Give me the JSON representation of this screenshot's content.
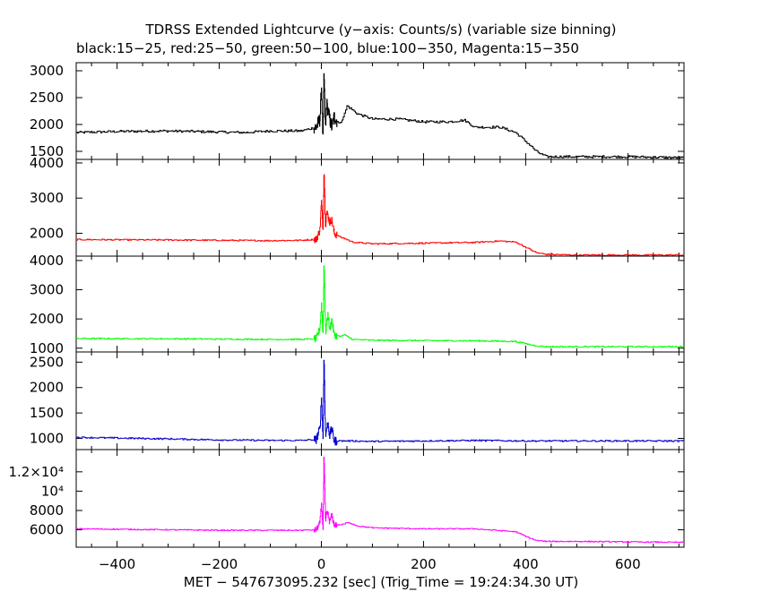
{
  "title": "TDRSS Extended Lightcurve (y−axis: Counts/s) (variable size binning)",
  "subtitle": "black:15−25, red:25−50, green:50−100, blue:100−350, Magenta:15−350",
  "chart_data": {
    "type": "line",
    "title": "TDRSS Extended Lightcurve (y−axis: Counts/s) (variable size binning)",
    "subtitle": "black:15−25, red:25−50, green:50−100, blue:100−350, Magenta:15−350",
    "xlabel": "MET − 547673095.232 [sec] (Trig_Time = 19:24:34.30 UT)",
    "xlim": [
      -480,
      710
    ],
    "x_ticks": [
      -400,
      -200,
      0,
      200,
      400,
      600
    ],
    "x_tick_labels": [
      "−400",
      "−200",
      "0",
      "200",
      "400",
      "600"
    ],
    "grid": false,
    "panels": [
      {
        "name": "15−25",
        "color": "#000000",
        "ylim": [
          1350,
          3150
        ],
        "y_ticks": [
          1500,
          2000,
          2500,
          3000
        ],
        "y_tick_labels": [
          "1500",
          "2000",
          "2500",
          "3000"
        ],
        "noise": 22,
        "x": [
          -480,
          -400,
          -300,
          -200,
          -150,
          -100,
          -40,
          -10,
          -3,
          0,
          3,
          5,
          8,
          10,
          13,
          16,
          20,
          25,
          35,
          45,
          50,
          70,
          100,
          150,
          200,
          250,
          280,
          300,
          350,
          380,
          410,
          420,
          440,
          500,
          600,
          710
        ],
        "y": [
          1850,
          1870,
          1880,
          1860,
          1850,
          1880,
          1880,
          1950,
          2100,
          2700,
          1700,
          3000,
          1850,
          2400,
          2250,
          2100,
          1950,
          2150,
          2000,
          2200,
          2350,
          2200,
          2100,
          2100,
          2050,
          2050,
          2080,
          1950,
          1950,
          1850,
          1600,
          1500,
          1400,
          1400,
          1400,
          1380
        ]
      },
      {
        "name": "25−50",
        "color": "#ff0000",
        "ylim": [
          1350,
          4100
        ],
        "y_ticks": [
          2000,
          3000,
          4000
        ],
        "y_tick_labels": [
          "2000",
          "3000",
          "4000"
        ],
        "noise": 18,
        "x": [
          -480,
          -300,
          -200,
          -100,
          -40,
          -10,
          -3,
          0,
          3,
          5,
          8,
          10,
          13,
          16,
          20,
          25,
          35,
          45,
          60,
          100,
          200,
          300,
          350,
          380,
          400,
          420,
          440,
          500,
          600,
          710
        ],
        "y": [
          1820,
          1810,
          1800,
          1790,
          1800,
          1830,
          2100,
          2900,
          2100,
          3900,
          2200,
          2600,
          2500,
          2300,
          2400,
          2000,
          1900,
          1850,
          1750,
          1700,
          1720,
          1740,
          1780,
          1750,
          1600,
          1450,
          1400,
          1380,
          1380,
          1380
        ]
      },
      {
        "name": "50−100",
        "color": "#00ff00",
        "ylim": [
          870,
          4150
        ],
        "y_ticks": [
          1000,
          2000,
          3000,
          4000
        ],
        "y_tick_labels": [
          "1000",
          "2000",
          "3000",
          "4000"
        ],
        "noise": 20,
        "x": [
          -480,
          -300,
          -200,
          -100,
          -40,
          -10,
          -3,
          0,
          3,
          5,
          8,
          10,
          13,
          16,
          20,
          25,
          35,
          45,
          60,
          100,
          300,
          380,
          400,
          420,
          440,
          500,
          600,
          710
        ],
        "y": [
          1330,
          1320,
          1310,
          1300,
          1300,
          1320,
          1700,
          2500,
          1500,
          4100,
          1500,
          1800,
          2200,
          1600,
          2000,
          1450,
          1400,
          1450,
          1300,
          1270,
          1250,
          1230,
          1150,
          1080,
          1050,
          1050,
          1050,
          1050
        ]
      },
      {
        "name": "100−350",
        "color": "#0000cc",
        "ylim": [
          780,
          2700
        ],
        "y_ticks": [
          1000,
          1500,
          2000,
          2500
        ],
        "y_tick_labels": [
          "1000",
          "1500",
          "2000",
          "2500"
        ],
        "noise": 14,
        "x": [
          -480,
          -300,
          -200,
          -100,
          -40,
          -10,
          -3,
          0,
          3,
          5,
          8,
          10,
          13,
          16,
          20,
          25,
          35,
          45,
          60,
          100,
          300,
          400,
          500,
          600,
          710
        ],
        "y": [
          1020,
          990,
          970,
          960,
          960,
          980,
          1200,
          1800,
          1000,
          2700,
          1000,
          1200,
          1300,
          1050,
          1200,
          950,
          950,
          950,
          950,
          940,
          960,
          950,
          950,
          950,
          950
        ]
      },
      {
        "name": "15−350",
        "color": "#ff00ff",
        "ylim": [
          4200,
          14300
        ],
        "y_ticks": [
          6000,
          8000,
          10000,
          12000
        ],
        "y_tick_labels": [
          "6000",
          "8000",
          "10⁴",
          "1.2×10⁴"
        ],
        "noise": 50,
        "x": [
          -480,
          -300,
          -200,
          -100,
          -40,
          -10,
          -3,
          0,
          3,
          5,
          8,
          10,
          13,
          16,
          20,
          25,
          35,
          45,
          50,
          70,
          100,
          200,
          300,
          380,
          400,
          420,
          440,
          500,
          600,
          710
        ],
        "y": [
          6100,
          6000,
          5950,
          5950,
          5950,
          6000,
          6700,
          8700,
          6200,
          14000,
          6500,
          7800,
          7600,
          6800,
          7500,
          6500,
          6500,
          6600,
          6800,
          6400,
          6200,
          6100,
          6100,
          5800,
          5300,
          4900,
          4800,
          4800,
          4750,
          4700
        ]
      }
    ]
  }
}
